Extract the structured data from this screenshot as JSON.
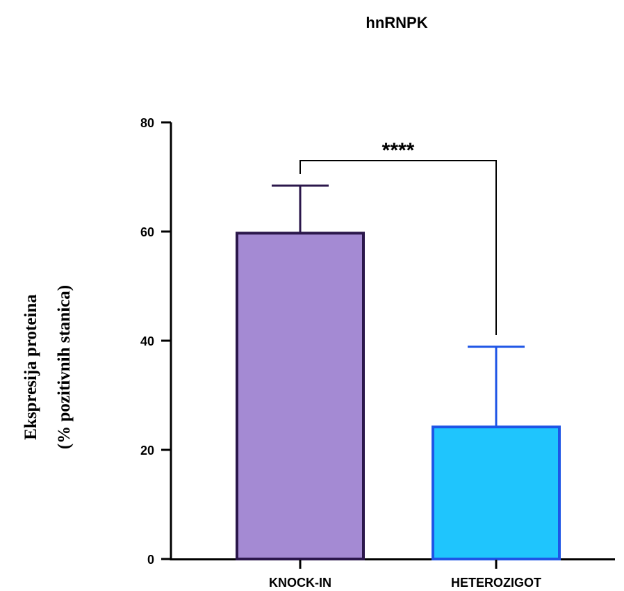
{
  "chart_data": {
    "type": "bar",
    "title": "hnRNPK",
    "ylabel_line1": "Ekspresija proteina",
    "ylabel_line2": "(% pozitivnih stanica)",
    "xlabel": "",
    "categories": [
      "KNOCK-IN",
      "HETEROZIGOT"
    ],
    "values": [
      59.7,
      24.2
    ],
    "error_upper": [
      68.4,
      38.9
    ],
    "ylim": [
      0,
      80
    ],
    "yticks": [
      "0",
      "20",
      "40",
      "60",
      "80"
    ],
    "significance": "****",
    "colors": {
      "fills": [
        "#a48ad3",
        "#1fc5fd"
      ],
      "strokes": [
        "#2b174b",
        "#1e55e6"
      ],
      "axis": "#000000"
    },
    "grid": false,
    "legend": "none"
  }
}
